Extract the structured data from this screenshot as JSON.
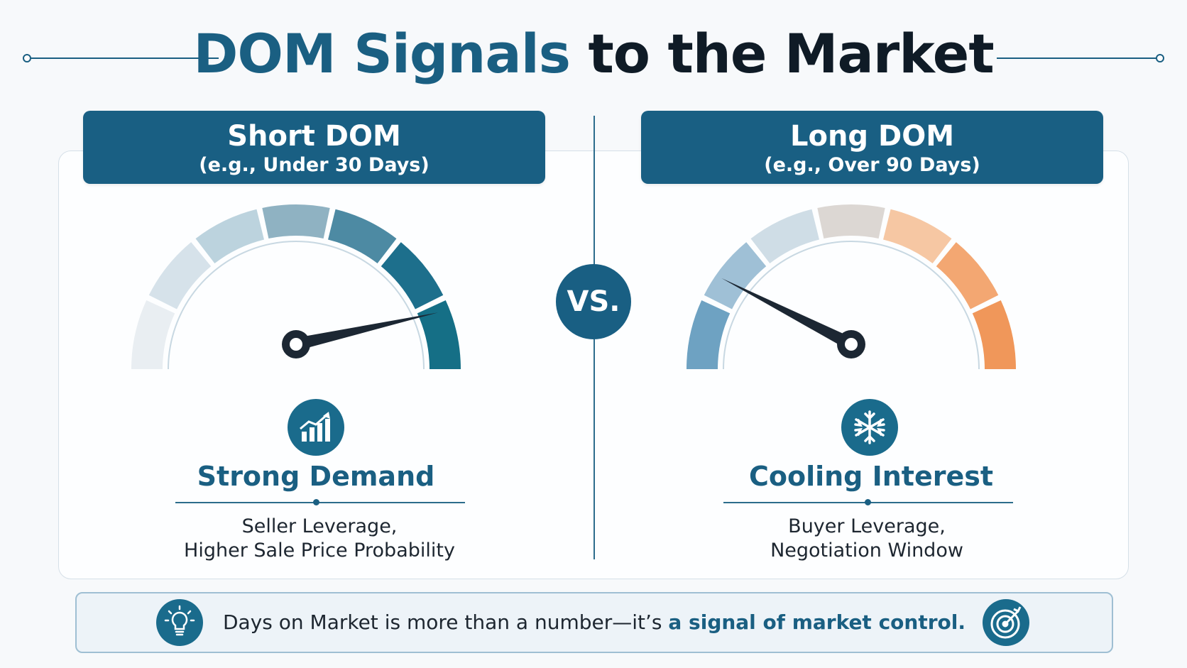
{
  "title": {
    "part1": "DOM Signals",
    "part2": "to the Market"
  },
  "vs_label": "VS.",
  "left": {
    "header_title": "Short DOM",
    "header_sub": "(e.g., Under 30 Days)",
    "gauge_level": 0.93,
    "icon": "rising-bar-chart-icon",
    "label": "Strong Demand",
    "desc_line1": "Seller Leverage,",
    "desc_line2": "Higher Sale Price Probability",
    "segment_colors": [
      "#e9eef2",
      "#d6e2ea",
      "#bcd3de",
      "#8fb2c2",
      "#4d8aa3",
      "#1d6f8c",
      "#156f86"
    ]
  },
  "right": {
    "header_title": "Long DOM",
    "header_sub": "(e.g., Over 90 Days)",
    "gauge_level": 0.15,
    "icon": "snowflake-icon",
    "label": "Cooling Interest",
    "desc_line1": "Buyer Leverage,",
    "desc_line2": "Negotiation Window",
    "segment_colors": [
      "#6ea2c2",
      "#9fc0d6",
      "#cfdde6",
      "#dcd7d3",
      "#f6c7a3",
      "#f3a772",
      "#f0975a"
    ]
  },
  "footer": {
    "text": "Days on Market is more than a number—it’s ",
    "emphasis": "a signal of market control.",
    "left_icon": "lightbulb-icon",
    "right_icon": "target-icon"
  },
  "colors": {
    "primary": "#195f83",
    "dark": "#0f1b26",
    "needle": "#1c2733"
  }
}
